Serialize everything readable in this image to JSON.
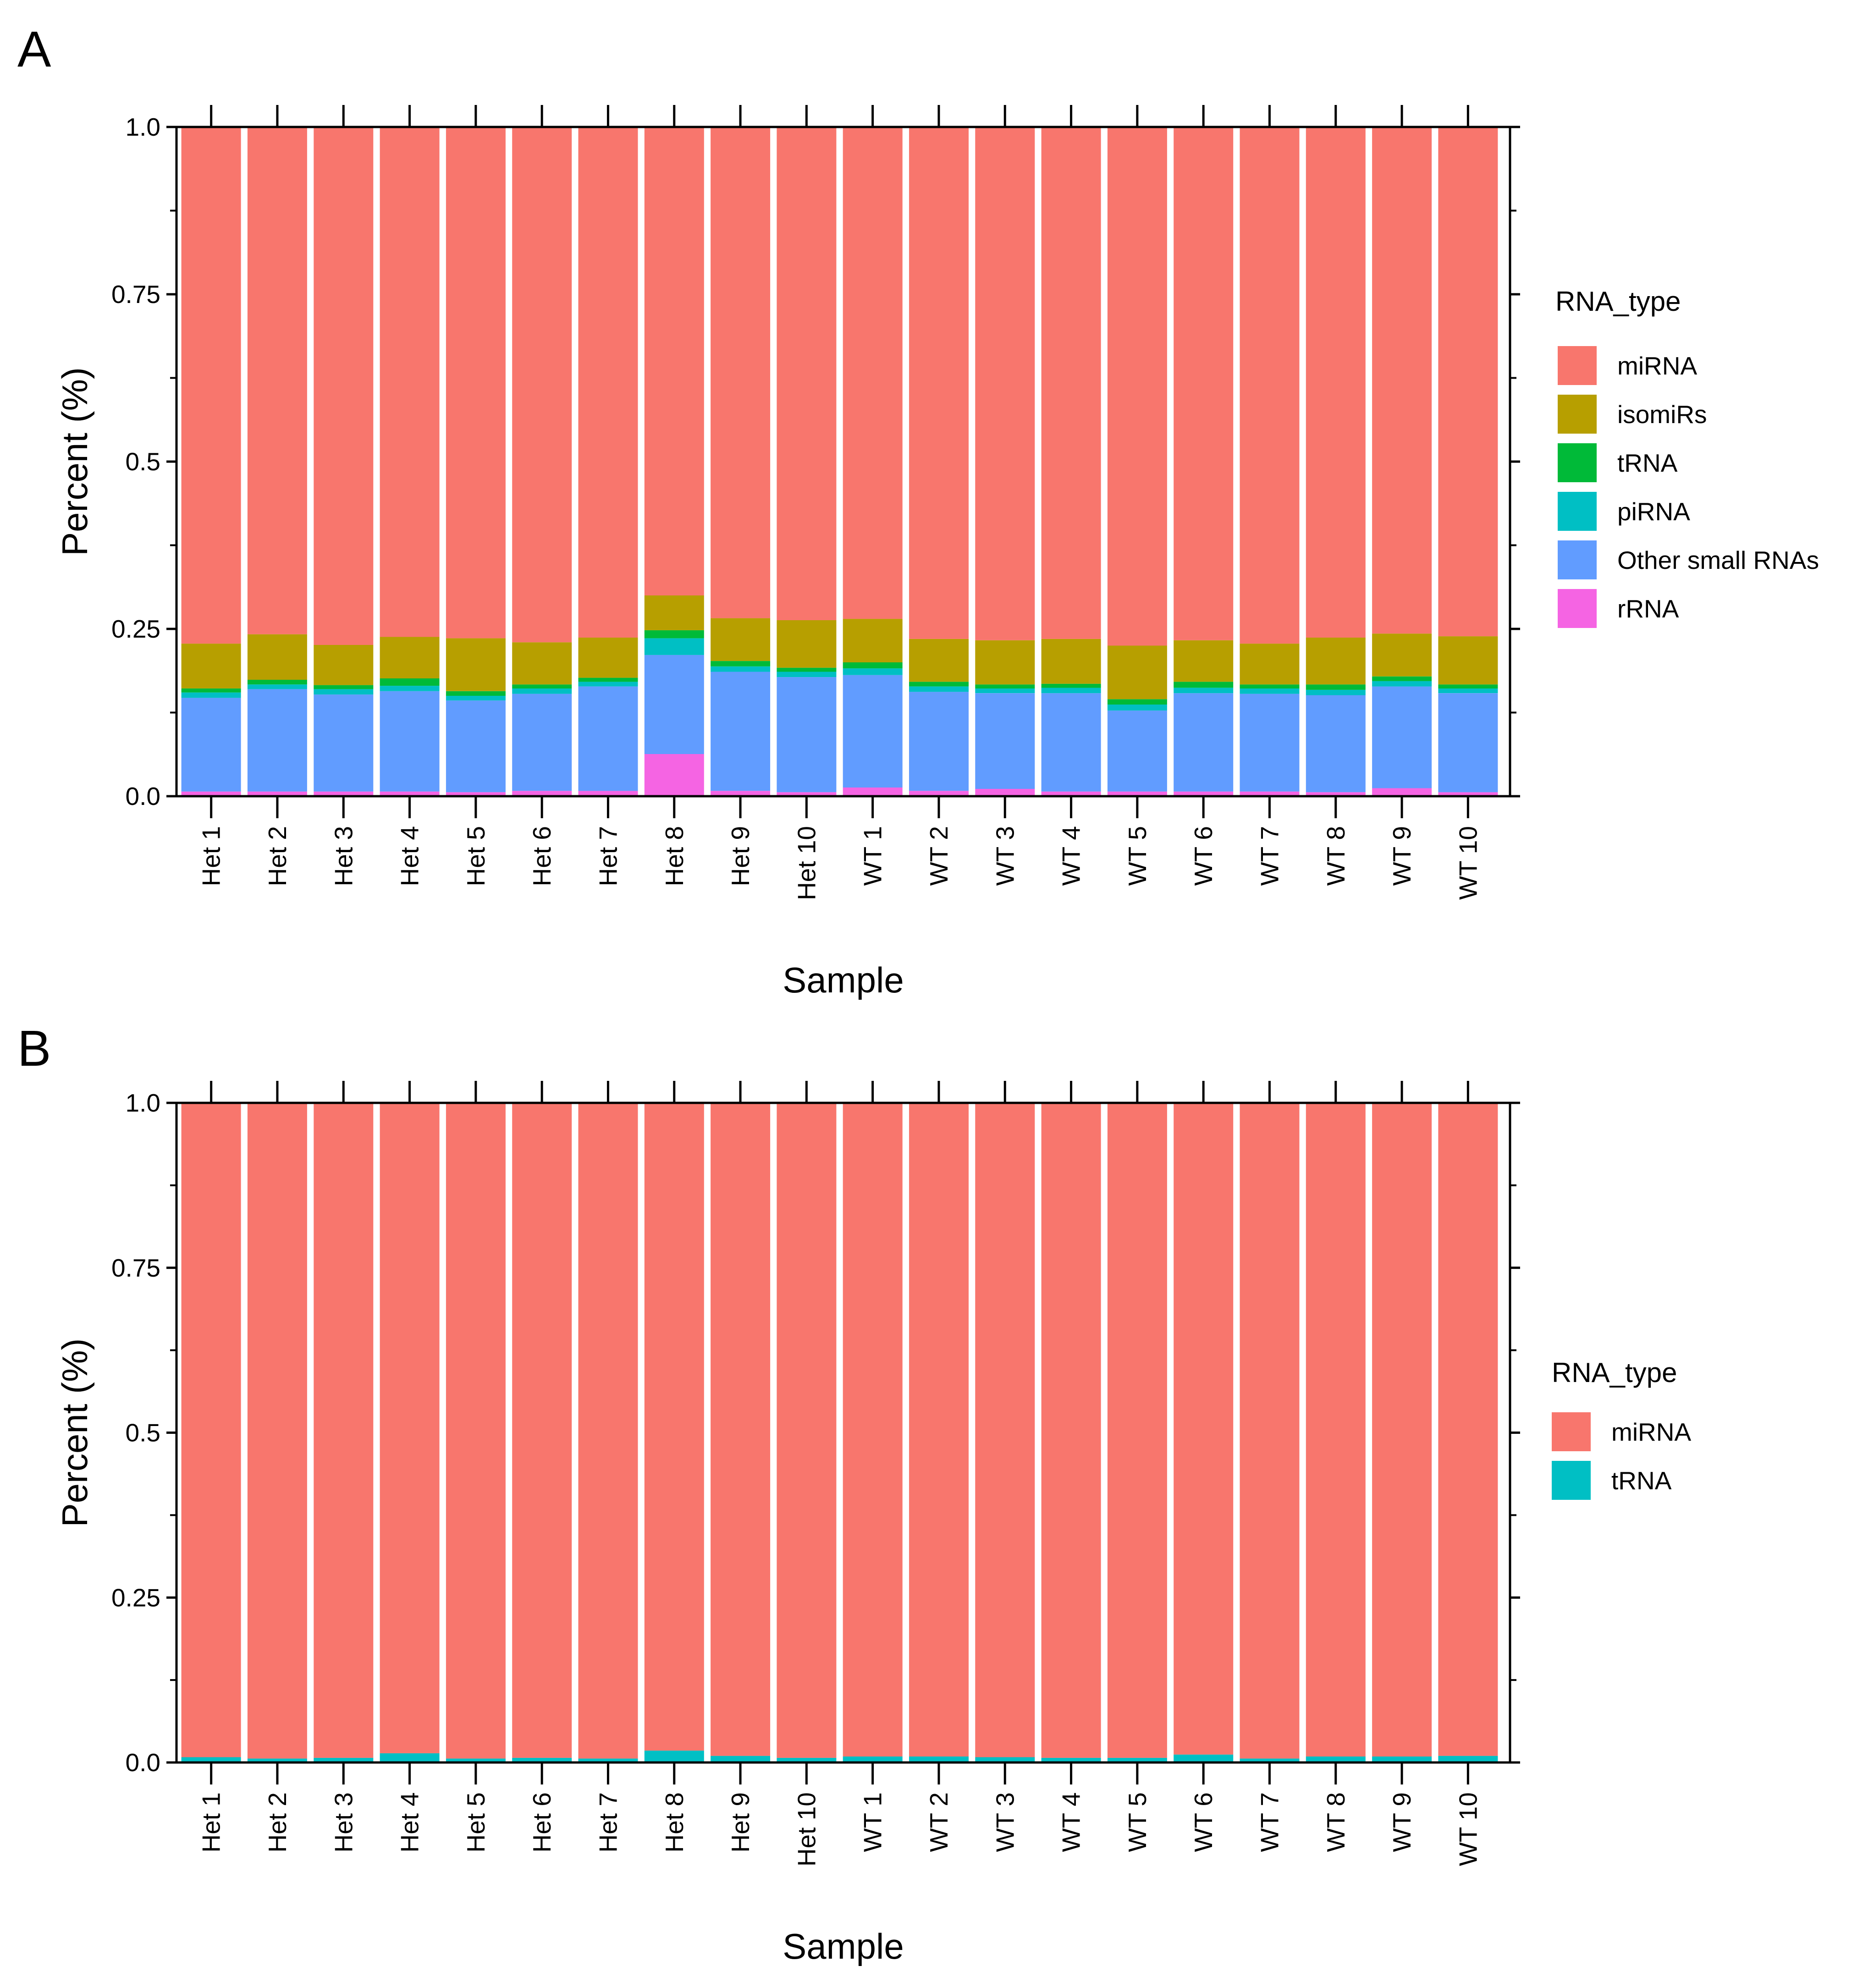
{
  "figure": {
    "panels": [
      {
        "letter": "A"
      },
      {
        "letter": "B"
      }
    ]
  },
  "chart_data": [
    {
      "type": "bar",
      "stacked": true,
      "panel": "A",
      "xlabel": "Sample",
      "ylabel": "Percent (%)",
      "ylim": [
        0,
        1
      ],
      "yticks": [
        "0.0",
        "0.25",
        "0.5",
        "0.75",
        "1.0"
      ],
      "categories": [
        "Het 1",
        "Het 2",
        "Het 3",
        "Het 4",
        "Het 5",
        "Het 6",
        "Het 7",
        "Het 8",
        "Het 9",
        "Het 10",
        "WT 1",
        "WT 2",
        "WT 3",
        "WT 4",
        "WT 5",
        "WT 6",
        "WT 7",
        "WT 8",
        "WT 9",
        "WT 10"
      ],
      "legend": {
        "title": "RNA_type",
        "position": "right"
      },
      "series": [
        {
          "name": "rRNA",
          "color": "#F564E3",
          "values": [
            0.007,
            0.007,
            0.007,
            0.007,
            0.006,
            0.008,
            0.008,
            0.063,
            0.008,
            0.006,
            0.013,
            0.008,
            0.011,
            0.007,
            0.007,
            0.007,
            0.007,
            0.006,
            0.012,
            0.006
          ]
        },
        {
          "name": "Other small RNAs",
          "color": "#619CFF",
          "values": [
            0.14,
            0.153,
            0.145,
            0.15,
            0.137,
            0.145,
            0.156,
            0.148,
            0.178,
            0.172,
            0.168,
            0.148,
            0.143,
            0.147,
            0.121,
            0.147,
            0.146,
            0.145,
            0.152,
            0.148
          ]
        },
        {
          "name": "piRNA",
          "color": "#00BFC4",
          "values": [
            0.008,
            0.007,
            0.008,
            0.008,
            0.007,
            0.008,
            0.007,
            0.025,
            0.008,
            0.008,
            0.01,
            0.008,
            0.007,
            0.008,
            0.009,
            0.008,
            0.008,
            0.008,
            0.008,
            0.007
          ]
        },
        {
          "name": "tRNA",
          "color": "#00BA38",
          "values": [
            0.006,
            0.007,
            0.006,
            0.011,
            0.007,
            0.006,
            0.006,
            0.012,
            0.008,
            0.006,
            0.009,
            0.007,
            0.006,
            0.006,
            0.008,
            0.009,
            0.006,
            0.008,
            0.007,
            0.006
          ]
        },
        {
          "name": "isomiRs",
          "color": "#B79F00",
          "values": [
            0.067,
            0.068,
            0.06,
            0.062,
            0.079,
            0.063,
            0.06,
            0.052,
            0.064,
            0.071,
            0.065,
            0.064,
            0.066,
            0.067,
            0.08,
            0.062,
            0.061,
            0.07,
            0.064,
            0.072
          ]
        },
        {
          "name": "miRNA",
          "color": "#F8766D",
          "values": [
            0.772,
            0.758,
            0.774,
            0.762,
            0.764,
            0.77,
            0.763,
            0.7,
            0.734,
            0.737,
            0.735,
            0.765,
            0.767,
            0.765,
            0.775,
            0.767,
            0.772,
            0.763,
            0.757,
            0.761
          ]
        }
      ]
    },
    {
      "type": "bar",
      "stacked": true,
      "panel": "B",
      "xlabel": "Sample",
      "ylabel": "Percent (%)",
      "ylim": [
        0,
        1
      ],
      "yticks": [
        "0.0",
        "0.25",
        "0.5",
        "0.75",
        "1.0"
      ],
      "categories": [
        "Het 1",
        "Het 2",
        "Het 3",
        "Het 4",
        "Het 5",
        "Het 6",
        "Het 7",
        "Het 8",
        "Het 9",
        "Het 10",
        "WT 1",
        "WT 2",
        "WT 3",
        "WT 4",
        "WT 5",
        "WT 6",
        "WT 7",
        "WT 8",
        "WT 9",
        "WT 10"
      ],
      "legend": {
        "title": "RNA_type",
        "position": "right"
      },
      "series": [
        {
          "name": "tRNA",
          "color": "#00BFC4",
          "values": [
            0.008,
            0.006,
            0.007,
            0.014,
            0.006,
            0.007,
            0.006,
            0.018,
            0.01,
            0.007,
            0.009,
            0.009,
            0.008,
            0.007,
            0.007,
            0.012,
            0.006,
            0.009,
            0.009,
            0.01
          ]
        },
        {
          "name": "miRNA",
          "color": "#F8766D",
          "values": [
            0.992,
            0.994,
            0.993,
            0.986,
            0.994,
            0.993,
            0.994,
            0.982,
            0.99,
            0.993,
            0.991,
            0.991,
            0.992,
            0.993,
            0.993,
            0.988,
            0.994,
            0.991,
            0.991,
            0.99
          ]
        }
      ]
    }
  ]
}
